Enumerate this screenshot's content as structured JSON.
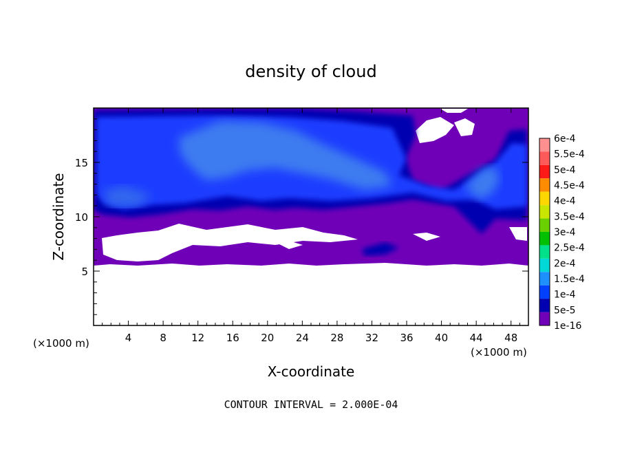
{
  "chart_data": {
    "type": "heatmap",
    "title": "density of cloud",
    "xlabel": "X-coordinate",
    "ylabel": "Z-coordinate",
    "x_unit": "(×1000 m)",
    "y_unit": "(×1000 m)",
    "xlim": [
      0,
      50
    ],
    "ylim": [
      0,
      20
    ],
    "x_ticks": [
      4,
      8,
      12,
      16,
      20,
      24,
      28,
      32,
      36,
      40,
      44,
      48
    ],
    "y_ticks": [
      5,
      10,
      15
    ],
    "colorbar": {
      "labels": [
        "6e-4",
        "5.5e-4",
        "5e-4",
        "4.5e-4",
        "4e-4",
        "3.5e-4",
        "3e-4",
        "2.5e-4",
        "2e-4",
        "1.5e-4",
        "1e-4",
        "5e-5",
        "1e-16"
      ],
      "colors": [
        "#ff9090",
        "#ff5a5a",
        "#ff1a1a",
        "#ff8c00",
        "#ffd700",
        "#c8e600",
        "#6ad000",
        "#00c000",
        "#00e08a",
        "#00d7d7",
        "#1e90ff",
        "#0040ff",
        "#0000b0",
        "#7000b8"
      ]
    },
    "field_description_values": {
      "layer_top": 19.8,
      "layer_bottom_approx": 5.5,
      "fill_min_level": "1e-16"
    },
    "note": "CONTOUR INTERVAL = 2.000E-04"
  }
}
